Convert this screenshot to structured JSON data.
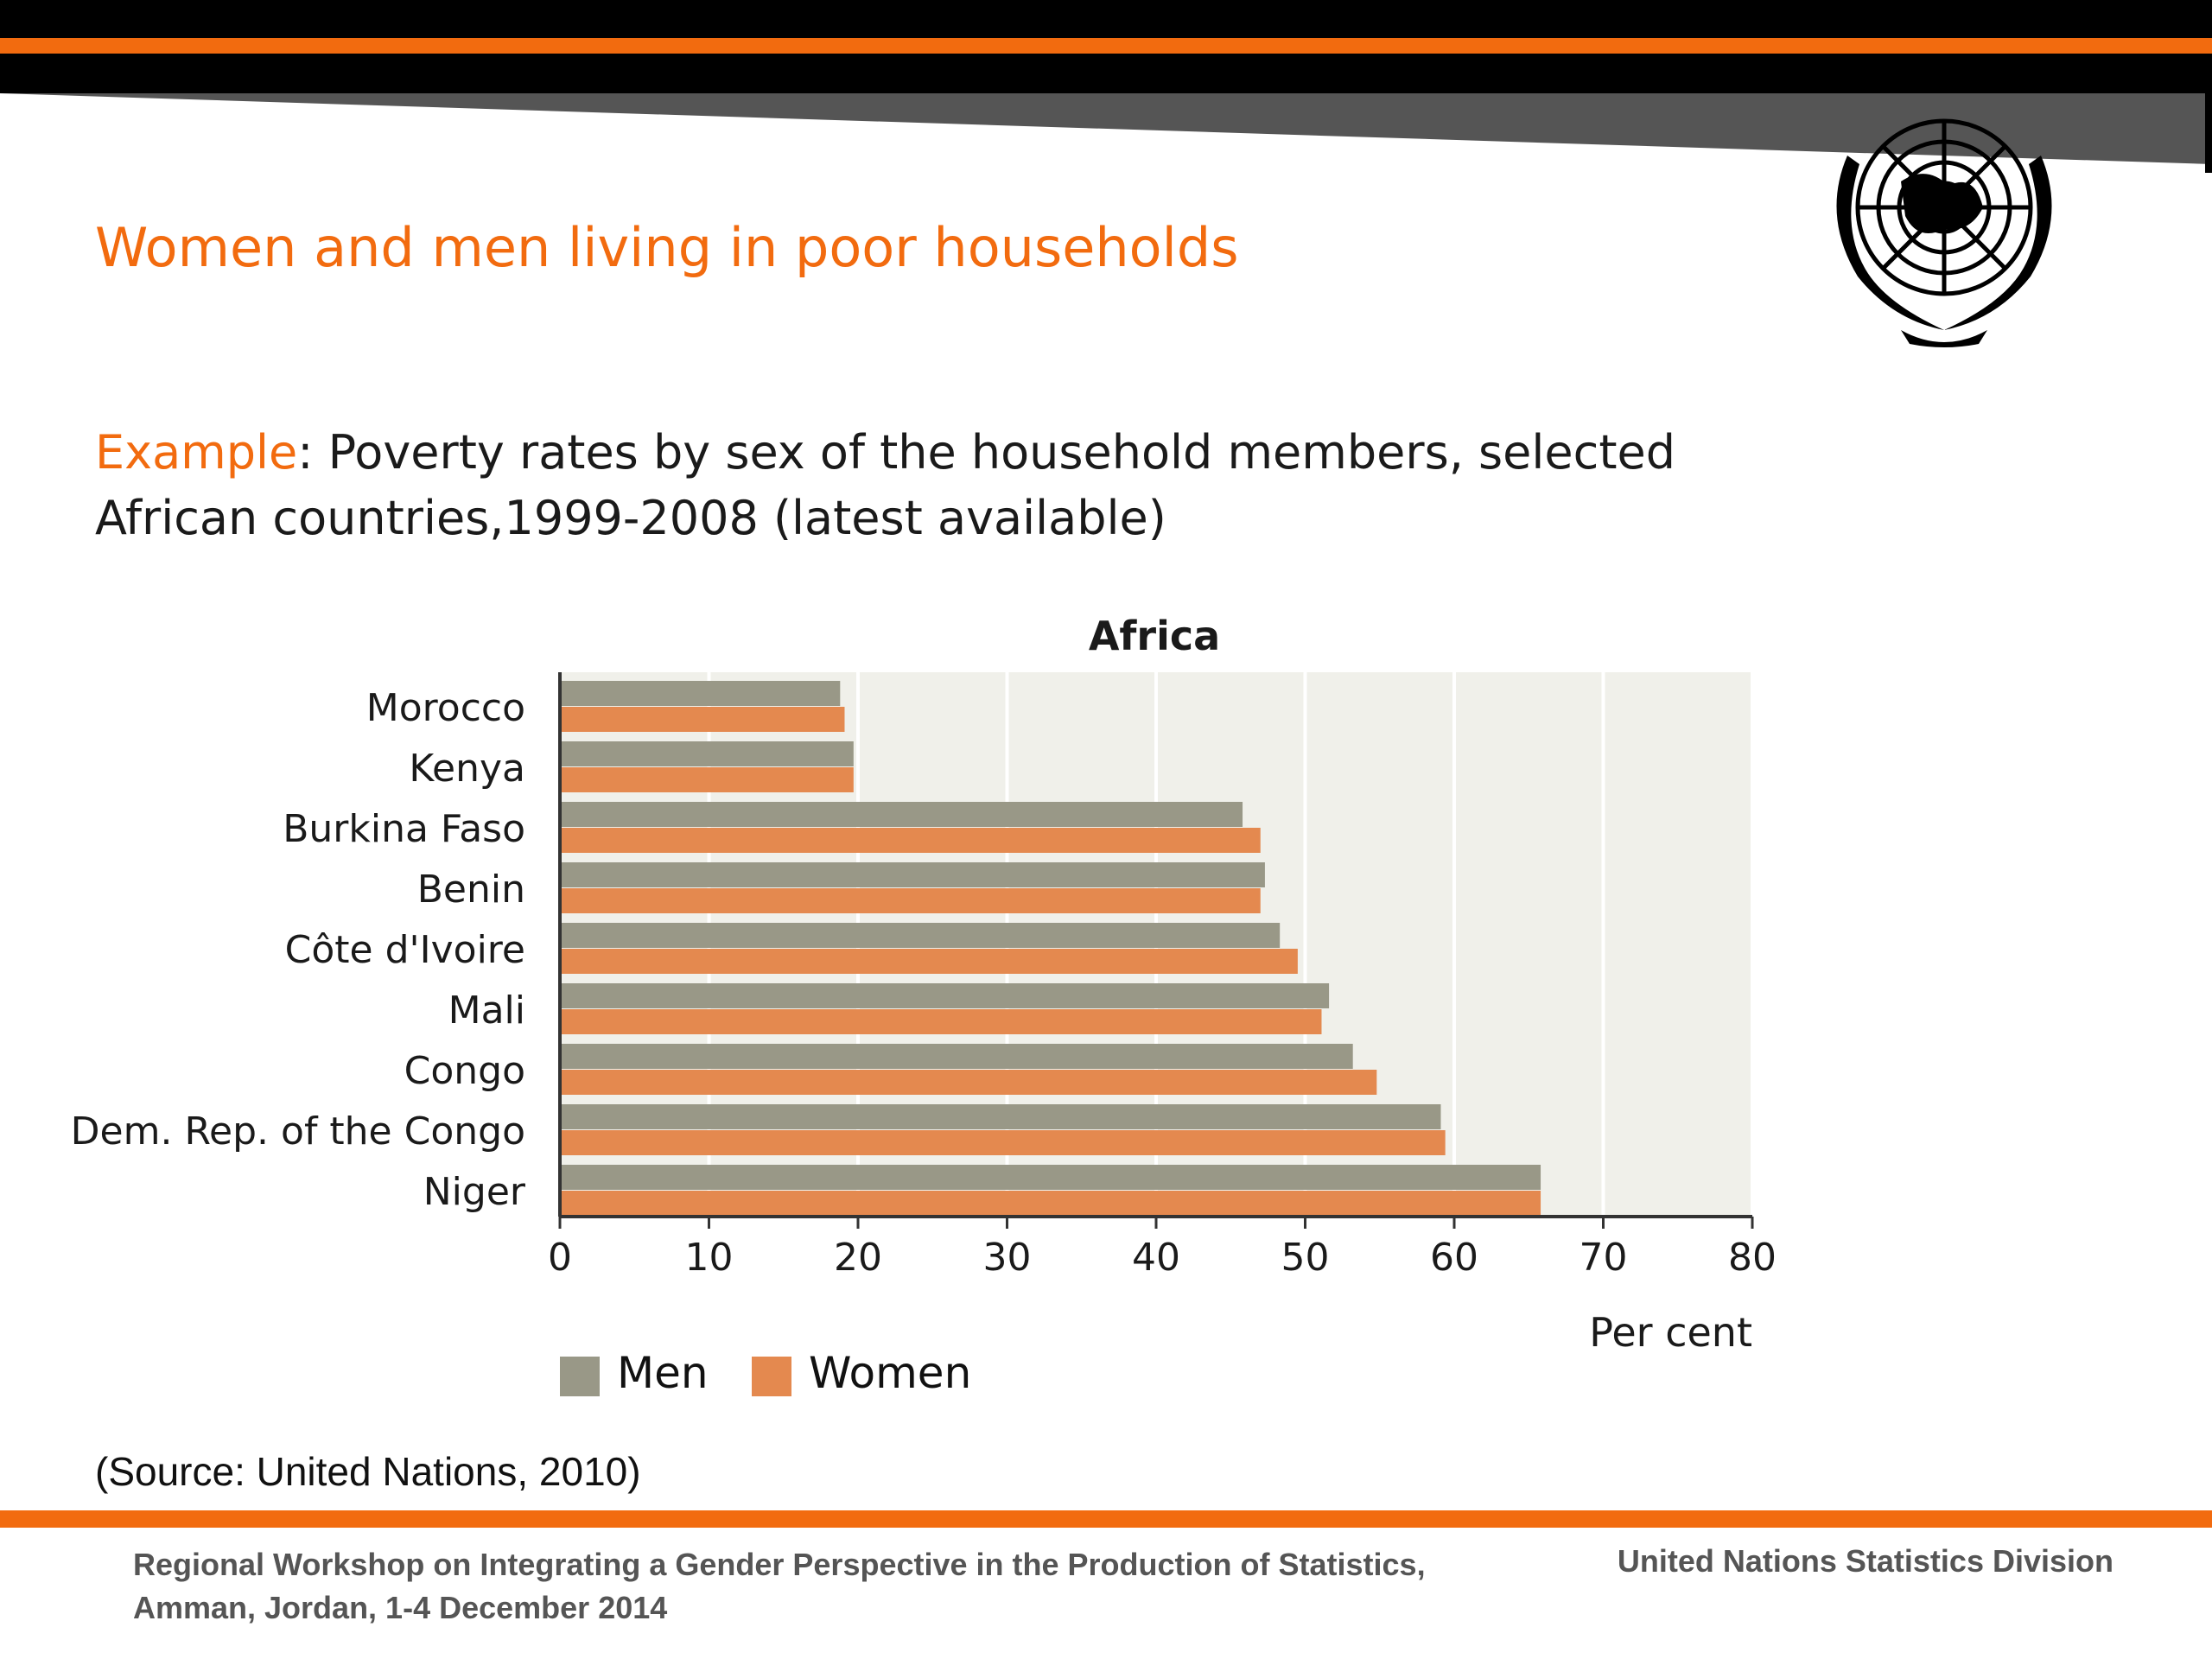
{
  "slide": {
    "title": "Women and men living in poor households",
    "subtitle_highlight": "Example",
    "subtitle_text": ": Poverty rates by sex of the household members, selected African countries,1999-2008 (latest available)",
    "source": "(Source: United Nations, 2010)",
    "footer_left": "Regional Workshop on Integrating a Gender Perspective in the Production of Statistics, Amman, Jordan, 1-4 December 2014",
    "footer_right": "United Nations Statistics Division",
    "colors": {
      "accent": "#f26b0f",
      "men": "#999887",
      "women": "#e4894f",
      "plot_bg": "#f0f0ea"
    },
    "logo_icon": "un-emblem-icon"
  },
  "chart_data": {
    "type": "bar",
    "orientation": "horizontal",
    "title": "Africa",
    "xlabel": "Per cent",
    "ylabel": "",
    "xlim": [
      0,
      80
    ],
    "xticks": [
      0,
      10,
      20,
      30,
      40,
      50,
      60,
      70,
      80
    ],
    "grid": true,
    "legend_position": "bottom-left",
    "categories": [
      "Morocco",
      "Kenya",
      "Burkina Faso",
      "Benin",
      "Côte d'Ivoire",
      "Mali",
      "Congo",
      "Dem. Rep. of the Congo",
      "Niger"
    ],
    "series": [
      {
        "name": "Men",
        "color": "#999887",
        "values": [
          18.8,
          19.7,
          45.8,
          47.3,
          48.3,
          51.6,
          53.2,
          59.1,
          65.8
        ]
      },
      {
        "name": "Women",
        "color": "#e4894f",
        "values": [
          19.1,
          19.7,
          47.0,
          47.0,
          49.5,
          51.1,
          54.8,
          59.4,
          65.8
        ]
      }
    ]
  }
}
